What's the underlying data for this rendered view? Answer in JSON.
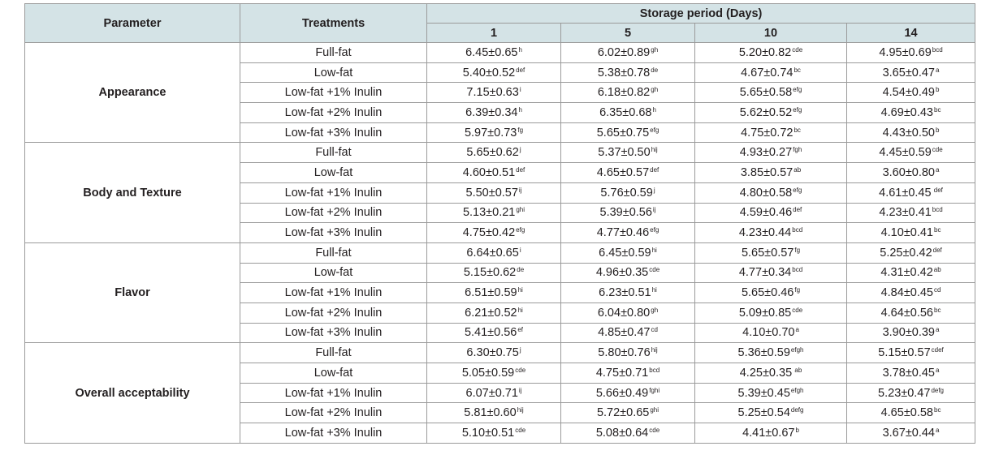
{
  "header": {
    "parameter": "Parameter",
    "treatments": "Treatments",
    "storage_period": "Storage period (Days)",
    "days": [
      "1",
      "5",
      "10",
      "14"
    ]
  },
  "groups": [
    {
      "parameter": "Appearance",
      "rows": [
        {
          "treatment": "Full-fat",
          "cells": [
            {
              "v": "6.45±0.65",
              "s": "h"
            },
            {
              "v": "6.02±0.89",
              "s": "gh"
            },
            {
              "v": "5.20±0.82",
              "s": "cde"
            },
            {
              "v": "4.95±0.69",
              "s": "bcd"
            }
          ]
        },
        {
          "treatment": "Low-fat",
          "cells": [
            {
              "v": "5.40±0.52",
              "s": "def"
            },
            {
              "v": "5.38±0.78",
              "s": "de"
            },
            {
              "v": "4.67±0.74",
              "s": "bc"
            },
            {
              "v": "3.65±0.47",
              "s": "a"
            }
          ]
        },
        {
          "treatment": "Low-fat +1% Inulin",
          "cells": [
            {
              "v": "7.15±0.63",
              "s": "i"
            },
            {
              "v": "6.18±0.82",
              "s": "gh"
            },
            {
              "v": "5.65±0.58",
              "s": "efg"
            },
            {
              "v": "4.54±0.49",
              "s": "b"
            }
          ]
        },
        {
          "treatment": "Low-fat +2% Inulin",
          "cells": [
            {
              "v": "6.39±0.34",
              "s": "h"
            },
            {
              "v": "6.35±0.68",
              "s": "h"
            },
            {
              "v": "5.62±0.52",
              "s": "efg"
            },
            {
              "v": "4.69±0.43",
              "s": "bc"
            }
          ]
        },
        {
          "treatment": "Low-fat +3% Inulin",
          "cells": [
            {
              "v": "5.97±0.73",
              "s": "fg"
            },
            {
              "v": "5.65±0.75",
              "s": "efg"
            },
            {
              "v": "4.75±0.72",
              "s": "bc"
            },
            {
              "v": "4.43±0.50",
              "s": "b"
            }
          ]
        }
      ]
    },
    {
      "parameter": "Body and Texture",
      "rows": [
        {
          "treatment": "Full-fat",
          "cells": [
            {
              "v": "5.65±0.62",
              "s": "j"
            },
            {
              "v": "5.37±0.50",
              "s": "hij"
            },
            {
              "v": "4.93±0.27",
              "s": "fgh"
            },
            {
              "v": "4.45±0.59",
              "s": "cde"
            }
          ]
        },
        {
          "treatment": "Low-fat",
          "cells": [
            {
              "v": "4.60±0.51",
              "s": "def"
            },
            {
              "v": "4.65±0.57",
              "s": "def"
            },
            {
              "v": "3.85±0.57",
              "s": "ab"
            },
            {
              "v": "3.60±0.80",
              "s": "a"
            }
          ]
        },
        {
          "treatment": "Low-fat +1% Inulin",
          "cells": [
            {
              "v": "5.50±0.57",
              "s": "ij"
            },
            {
              "v": "5.76±0.59",
              "s": "j"
            },
            {
              "v": "4.80±0.58",
              "s": "efg"
            },
            {
              "v": "4.61±0.45",
              "s": " def"
            }
          ]
        },
        {
          "treatment": "Low-fat +2% Inulin",
          "cells": [
            {
              "v": "5.13±0.21",
              "s": "ghi"
            },
            {
              "v": "5.39±0.56",
              "s": "ij"
            },
            {
              "v": "4.59±0.46",
              "s": "def"
            },
            {
              "v": "4.23±0.41",
              "s": "bcd"
            }
          ]
        },
        {
          "treatment": "Low-fat +3% Inulin",
          "cells": [
            {
              "v": "4.75±0.42",
              "s": "efg"
            },
            {
              "v": "4.77±0.46",
              "s": "efg"
            },
            {
              "v": "4.23±0.44",
              "s": "bcd"
            },
            {
              "v": "4.10±0.41",
              "s": "bc"
            }
          ]
        }
      ]
    },
    {
      "parameter": "Flavor",
      "rows": [
        {
          "treatment": "Full-fat",
          "cells": [
            {
              "v": "6.64±0.65",
              "s": "i"
            },
            {
              "v": "6.45±0.59",
              "s": "hi"
            },
            {
              "v": "5.65±0.57",
              "s": "fg"
            },
            {
              "v": "5.25±0.42",
              "s": "def"
            }
          ]
        },
        {
          "treatment": "Low-fat",
          "cells": [
            {
              "v": "5.15±0.62",
              "s": "de"
            },
            {
              "v": "4.96±0.35",
              "s": "cde"
            },
            {
              "v": "4.77±0.34",
              "s": "bcd"
            },
            {
              "v": "4.31±0.42",
              "s": "ab"
            }
          ]
        },
        {
          "treatment": "Low-fat +1% Inulin",
          "cells": [
            {
              "v": "6.51±0.59",
              "s": "hi"
            },
            {
              "v": "6.23±0.51",
              "s": "hi"
            },
            {
              "v": "5.65±0.46",
              "s": "fg"
            },
            {
              "v": "4.84±0.45",
              "s": "cd"
            }
          ]
        },
        {
          "treatment": "Low-fat +2% Inulin",
          "cells": [
            {
              "v": "6.21±0.52",
              "s": "hi"
            },
            {
              "v": "6.04±0.80",
              "s": "gh"
            },
            {
              "v": "5.09±0.85",
              "s": "cde"
            },
            {
              "v": "4.64±0.56",
              "s": "bc"
            }
          ]
        },
        {
          "treatment": "Low-fat +3% Inulin",
          "cells": [
            {
              "v": "5.41±0.56",
              "s": "ef"
            },
            {
              "v": "4.85±0.47",
              "s": "cd"
            },
            {
              "v": "4.10±0.70",
              "s": "a"
            },
            {
              "v": "3.90±0.39",
              "s": "a"
            }
          ]
        }
      ]
    },
    {
      "parameter": "Overall acceptability",
      "rows": [
        {
          "treatment": "Full-fat",
          "cells": [
            {
              "v": "6.30±0.75",
              "s": "j"
            },
            {
              "v": "5.80±0.76",
              "s": "hij"
            },
            {
              "v": "5.36±0.59",
              "s": "efgh"
            },
            {
              "v": "5.15±0.57",
              "s": "cdef"
            }
          ]
        },
        {
          "treatment": "Low-fat",
          "cells": [
            {
              "v": "5.05±0.59",
              "s": "cde"
            },
            {
              "v": "4.75±0.71",
              "s": "bcd"
            },
            {
              "v": "4.25±0.35",
              "s": " ab"
            },
            {
              "v": "3.78±0.45",
              "s": "a"
            }
          ]
        },
        {
          "treatment": "Low-fat +1% Inulin",
          "cells": [
            {
              "v": "6.07±0.71",
              "s": "ij"
            },
            {
              "v": "5.66±0.49",
              "s": "fghi"
            },
            {
              "v": "5.39±0.45",
              "s": "efgh"
            },
            {
              "v": "5.23±0.47",
              "s": "defg"
            }
          ]
        },
        {
          "treatment": "Low-fat +2% Inulin",
          "cells": [
            {
              "v": "5.81±0.60",
              "s": "hij"
            },
            {
              "v": "5.72±0.65",
              "s": "ghi"
            },
            {
              "v": "5.25±0.54",
              "s": "defg"
            },
            {
              "v": "4.65±0.58",
              "s": "bc"
            }
          ]
        },
        {
          "treatment": "Low-fat +3% Inulin",
          "cells": [
            {
              "v": "5.10±0.51",
              "s": "cde"
            },
            {
              "v": "5.08±0.64",
              "s": "cde"
            },
            {
              "v": "4.41±0.67",
              "s": "b"
            },
            {
              "v": "3.67±0.44",
              "s": "a"
            }
          ]
        }
      ]
    }
  ]
}
